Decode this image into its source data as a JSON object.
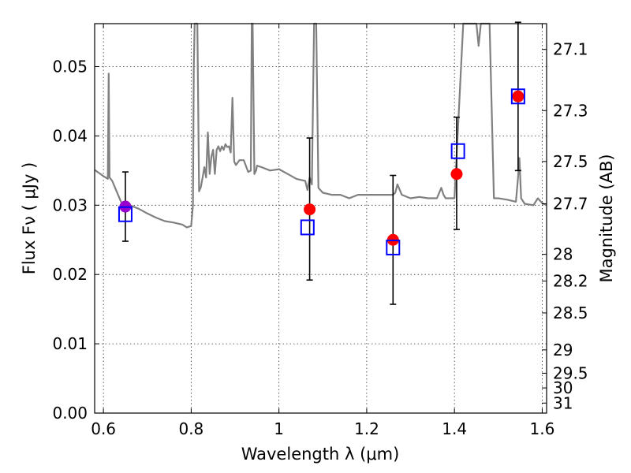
{
  "chart_data": {
    "type": "scatter",
    "title": "",
    "xlabel": "Wavelength  λ (μm)",
    "ylabel": "Flux  Fν  ( μJy )",
    "ylabel_right": "Magnitude (AB)",
    "xlim": [
      0.58,
      1.61
    ],
    "ylim": [
      0.0,
      0.0562
    ],
    "grid": true,
    "x_ticks": [
      0.6,
      0.8,
      1.0,
      1.2,
      1.4,
      1.6
    ],
    "x_tick_labels": [
      "0.6",
      "0.8",
      "1",
      "1.2",
      "1.4",
      "1.6"
    ],
    "y_ticks": [
      0.0,
      0.01,
      0.02,
      0.03,
      0.04,
      0.05
    ],
    "y_tick_labels": [
      "0.00",
      "0.01",
      "0.02",
      "0.03",
      "0.04",
      "0.05"
    ],
    "right_ticks": [
      27.1,
      27.3,
      27.5,
      27.7,
      28,
      28.2,
      28.5,
      29,
      29.5,
      30,
      31
    ],
    "right_tick_labels": [
      "27.1",
      "27.3",
      "27.5",
      "27.7",
      "28",
      "28.2",
      "28.5",
      "29",
      "29.5",
      "30",
      "31"
    ],
    "series": [
      {
        "marker": "circle",
        "color": "#ff0000",
        "x": [
          1.07,
          1.26,
          1.405,
          1.545
        ],
        "y": [
          0.0294,
          0.025,
          0.0345,
          0.0457
        ],
        "yerr_low": [
          0.0102,
          0.0093,
          0.008,
          0.0107
        ],
        "yerr_high": [
          0.0103,
          0.0093,
          0.0082,
          0.0107
        ]
      },
      {
        "marker": "circle",
        "color": "#9900cc",
        "x": [
          0.65
        ],
        "y": [
          0.0298
        ],
        "yerr_low": [
          0.005
        ],
        "yerr_high": [
          0.005
        ]
      },
      {
        "marker": "open-square",
        "color": "#0000ff",
        "x": [
          0.65,
          1.065,
          1.26,
          1.408,
          1.545
        ],
        "y": [
          0.0287,
          0.0268,
          0.0239,
          0.0378,
          0.0457
        ]
      },
      {
        "marker": "line",
        "color": "#808080",
        "x": [
          0.58,
          0.6,
          0.605,
          0.61,
          0.612,
          0.614,
          0.62,
          0.63,
          0.64,
          0.66,
          0.68,
          0.7,
          0.72,
          0.74,
          0.76,
          0.78,
          0.79,
          0.8,
          0.804,
          0.806,
          0.808,
          0.81,
          0.814,
          0.818,
          0.822,
          0.826,
          0.83,
          0.834,
          0.838,
          0.842,
          0.846,
          0.85,
          0.854,
          0.858,
          0.862,
          0.866,
          0.87,
          0.874,
          0.878,
          0.882,
          0.886,
          0.89,
          0.894,
          0.898,
          0.902,
          0.91,
          0.92,
          0.93,
          0.936,
          0.938,
          0.94,
          0.944,
          0.948,
          0.95,
          0.96,
          0.98,
          1.0,
          1.02,
          1.04,
          1.06,
          1.065,
          1.07,
          1.075,
          1.08,
          1.085,
          1.09,
          1.1,
          1.12,
          1.14,
          1.16,
          1.18,
          1.2,
          1.22,
          1.24,
          1.26,
          1.265,
          1.27,
          1.28,
          1.3,
          1.32,
          1.34,
          1.36,
          1.37,
          1.375,
          1.38,
          1.4,
          1.42,
          1.44,
          1.45,
          1.455,
          1.46,
          1.47,
          1.48,
          1.49,
          1.5,
          1.52,
          1.54,
          1.545,
          1.548,
          1.552,
          1.56,
          1.58,
          1.59,
          1.6,
          1.61
        ],
        "y": [
          0.0351,
          0.0342,
          0.034,
          0.0338,
          0.049,
          0.034,
          0.0335,
          0.032,
          0.0305,
          0.03,
          0.0295,
          0.0288,
          0.0282,
          0.0277,
          0.0275,
          0.0272,
          0.0268,
          0.027,
          0.03,
          0.05,
          0.0562,
          0.0562,
          0.0562,
          0.032,
          0.0326,
          0.034,
          0.0355,
          0.034,
          0.0405,
          0.0345,
          0.037,
          0.038,
          0.0345,
          0.038,
          0.0385,
          0.0378,
          0.0385,
          0.038,
          0.0388,
          0.0384,
          0.0385,
          0.0376,
          0.0455,
          0.0363,
          0.0358,
          0.0365,
          0.0365,
          0.0348,
          0.035,
          0.0562,
          0.0562,
          0.0345,
          0.035,
          0.0357,
          0.0355,
          0.035,
          0.0352,
          0.0345,
          0.0338,
          0.0335,
          0.0322,
          0.034,
          0.033,
          0.0562,
          0.0562,
          0.0325,
          0.0318,
          0.0315,
          0.0315,
          0.031,
          0.0315,
          0.0315,
          0.0315,
          0.0315,
          0.0315,
          0.0318,
          0.033,
          0.0315,
          0.031,
          0.0312,
          0.031,
          0.031,
          0.0325,
          0.0315,
          0.031,
          0.031,
          0.0562,
          0.0562,
          0.0562,
          0.053,
          0.0562,
          0.0562,
          0.0562,
          0.031,
          0.031,
          0.0308,
          0.0305,
          0.034,
          0.0368,
          0.031,
          0.0302,
          0.03,
          0.031,
          0.0303,
          0.03
        ]
      }
    ]
  }
}
